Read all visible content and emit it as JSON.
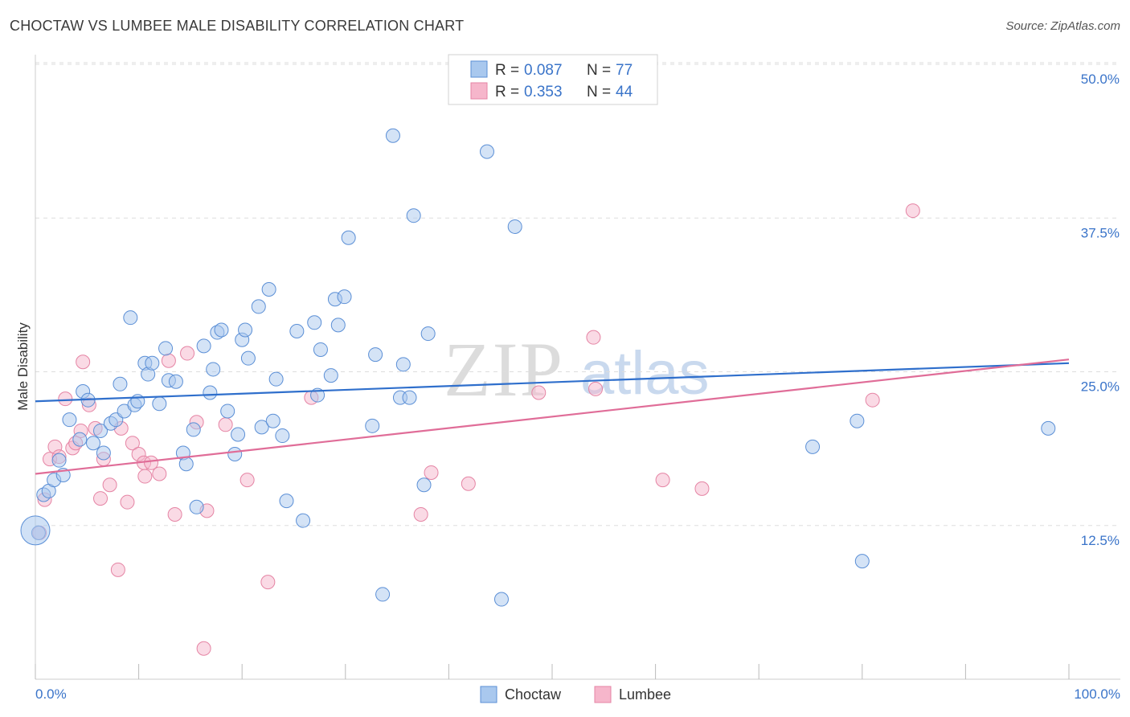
{
  "title": "CHOCTAW VS LUMBEE MALE DISABILITY CORRELATION CHART",
  "source": "Source: ZipAtlas.com",
  "watermark": {
    "zip": "ZIP",
    "atlas": "atlas"
  },
  "legend_box": {
    "rows": [
      {
        "r_label": "R = ",
        "r_value": "0.087",
        "n_label": "N = ",
        "n_value": "77"
      },
      {
        "r_label": "R = ",
        "r_value": "0.353",
        "n_label": "N = ",
        "n_value": "44"
      }
    ]
  },
  "bottom_legend": [
    "Choctaw",
    "Lumbee"
  ],
  "colors": {
    "choctaw_fill": "#a9c8ee",
    "choctaw_stroke": "#5b8fd6",
    "choctaw_line": "#2f6fcc",
    "lumbee_fill": "#f6b6cb",
    "lumbee_stroke": "#e584a4",
    "lumbee_line": "#e06d98",
    "tick": "#3a74c9",
    "grid": "#dddddd"
  },
  "chart_data": {
    "type": "scatter",
    "title": "CHOCTAW VS LUMBEE MALE DISABILITY CORRELATION CHART",
    "xlabel": "",
    "ylabel": "Male Disability",
    "xlim": [
      0,
      100
    ],
    "ylim": [
      0,
      50
    ],
    "x_tick_labels": [
      "0.0%",
      "100.0%"
    ],
    "y_ticks": [
      12.5,
      25.0,
      37.5,
      50.0
    ],
    "y_tick_labels": [
      "12.5%",
      "25.0%",
      "37.5%",
      "50.0%"
    ],
    "grid": "horizontal dashed",
    "legend_position": "top-center",
    "series": [
      {
        "name": "Choctaw",
        "r": 0.087,
        "n": 77,
        "trend": {
          "x": [
            0,
            100
          ],
          "y": [
            22.6,
            25.7
          ]
        },
        "points": [
          [
            0.3,
            11.9
          ],
          [
            0.8,
            15.0
          ],
          [
            1.3,
            15.3
          ],
          [
            1.8,
            16.2
          ],
          [
            2.3,
            17.8
          ],
          [
            2.7,
            16.6
          ],
          [
            3.3,
            21.1
          ],
          [
            4.3,
            19.5
          ],
          [
            4.6,
            23.4
          ],
          [
            5.1,
            22.7
          ],
          [
            5.6,
            19.2
          ],
          [
            6.3,
            20.2
          ],
          [
            6.6,
            18.4
          ],
          [
            7.3,
            20.8
          ],
          [
            7.8,
            21.1
          ],
          [
            8.2,
            24.0
          ],
          [
            8.6,
            21.8
          ],
          [
            9.2,
            29.4
          ],
          [
            9.6,
            22.3
          ],
          [
            9.9,
            22.6
          ],
          [
            10.6,
            25.7
          ],
          [
            10.9,
            24.8
          ],
          [
            11.3,
            25.7
          ],
          [
            12.0,
            22.4
          ],
          [
            12.6,
            26.9
          ],
          [
            12.9,
            24.3
          ],
          [
            13.6,
            24.2
          ],
          [
            14.3,
            18.4
          ],
          [
            14.6,
            17.5
          ],
          [
            15.3,
            20.3
          ],
          [
            15.6,
            14.0
          ],
          [
            16.3,
            27.1
          ],
          [
            16.9,
            23.3
          ],
          [
            17.2,
            25.2
          ],
          [
            17.6,
            28.2
          ],
          [
            18.0,
            28.4
          ],
          [
            18.6,
            21.8
          ],
          [
            19.3,
            18.3
          ],
          [
            19.6,
            19.9
          ],
          [
            20.0,
            27.6
          ],
          [
            20.3,
            28.4
          ],
          [
            20.6,
            26.1
          ],
          [
            21.6,
            30.3
          ],
          [
            21.9,
            20.5
          ],
          [
            22.6,
            31.7
          ],
          [
            23.0,
            21.0
          ],
          [
            23.3,
            24.4
          ],
          [
            23.9,
            19.8
          ],
          [
            24.3,
            14.5
          ],
          [
            25.3,
            28.3
          ],
          [
            25.9,
            12.9
          ],
          [
            27.0,
            29.0
          ],
          [
            27.3,
            23.1
          ],
          [
            27.6,
            26.8
          ],
          [
            28.6,
            24.7
          ],
          [
            29.0,
            30.9
          ],
          [
            29.3,
            28.8
          ],
          [
            29.9,
            31.1
          ],
          [
            30.3,
            35.9
          ],
          [
            32.6,
            20.6
          ],
          [
            32.9,
            26.4
          ],
          [
            33.6,
            6.9
          ],
          [
            34.6,
            44.2
          ],
          [
            35.3,
            22.9
          ],
          [
            35.6,
            25.6
          ],
          [
            36.2,
            22.9
          ],
          [
            36.6,
            37.7
          ],
          [
            37.6,
            15.8
          ],
          [
            38.0,
            28.1
          ],
          [
            43.7,
            42.9
          ],
          [
            45.1,
            6.5
          ],
          [
            46.4,
            36.8
          ],
          [
            75.2,
            18.9
          ],
          [
            79.5,
            21.0
          ],
          [
            80.0,
            9.6
          ],
          [
            98.0,
            20.4
          ],
          [
            0.0,
            12.1
          ]
        ]
      },
      {
        "name": "Lumbee",
        "r": 0.353,
        "n": 44,
        "trend": {
          "x": [
            0,
            100
          ],
          "y": [
            16.7,
            26.0
          ]
        },
        "points": [
          [
            0.4,
            11.9
          ],
          [
            0.9,
            14.6
          ],
          [
            1.4,
            17.9
          ],
          [
            1.9,
            18.9
          ],
          [
            2.3,
            18.1
          ],
          [
            2.9,
            22.8
          ],
          [
            3.6,
            18.8
          ],
          [
            3.9,
            19.2
          ],
          [
            4.4,
            20.2
          ],
          [
            4.6,
            25.8
          ],
          [
            5.2,
            22.3
          ],
          [
            5.8,
            20.4
          ],
          [
            6.3,
            14.7
          ],
          [
            6.6,
            17.9
          ],
          [
            7.2,
            15.8
          ],
          [
            8.0,
            8.9
          ],
          [
            8.3,
            20.4
          ],
          [
            8.9,
            14.4
          ],
          [
            9.4,
            19.2
          ],
          [
            10.0,
            18.3
          ],
          [
            10.5,
            17.6
          ],
          [
            10.6,
            16.5
          ],
          [
            11.2,
            17.6
          ],
          [
            12.0,
            16.7
          ],
          [
            12.9,
            25.9
          ],
          [
            13.5,
            13.4
          ],
          [
            14.7,
            26.5
          ],
          [
            15.6,
            20.9
          ],
          [
            16.3,
            2.5
          ],
          [
            16.6,
            13.7
          ],
          [
            18.4,
            20.7
          ],
          [
            20.5,
            16.2
          ],
          [
            22.5,
            7.9
          ],
          [
            26.7,
            22.9
          ],
          [
            37.3,
            13.4
          ],
          [
            38.3,
            16.8
          ],
          [
            41.9,
            15.9
          ],
          [
            48.7,
            23.3
          ],
          [
            54.0,
            27.8
          ],
          [
            54.2,
            23.6
          ],
          [
            60.7,
            16.2
          ],
          [
            64.5,
            15.5
          ],
          [
            81.0,
            22.7
          ],
          [
            84.9,
            38.1
          ]
        ]
      }
    ]
  }
}
